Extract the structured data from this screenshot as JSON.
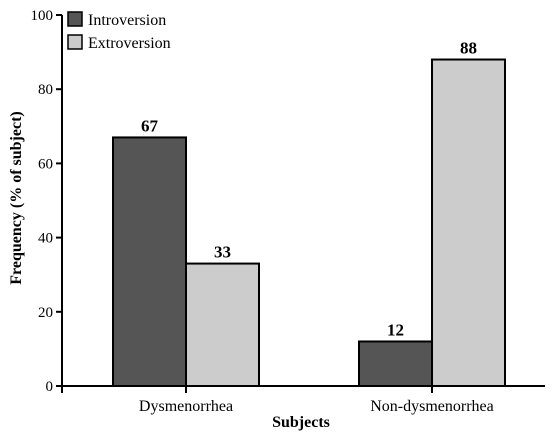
{
  "chart_data": {
    "type": "bar",
    "categories": [
      "Dysmenorrhea",
      "Non-dysmenorrhea"
    ],
    "series": [
      {
        "name": "Introversion",
        "values": [
          67,
          12
        ],
        "color": "#555555"
      },
      {
        "name": "Extroversion",
        "values": [
          33,
          88
        ],
        "color": "#cccccc"
      }
    ],
    "title": "",
    "xlabel": "Subjects",
    "ylabel": "Frequency (% of subject)",
    "ylim": [
      0,
      100
    ],
    "yticks": [
      0,
      20,
      40,
      60,
      80,
      100
    ],
    "data_labels": true,
    "legend": "top-left",
    "grid": false
  }
}
